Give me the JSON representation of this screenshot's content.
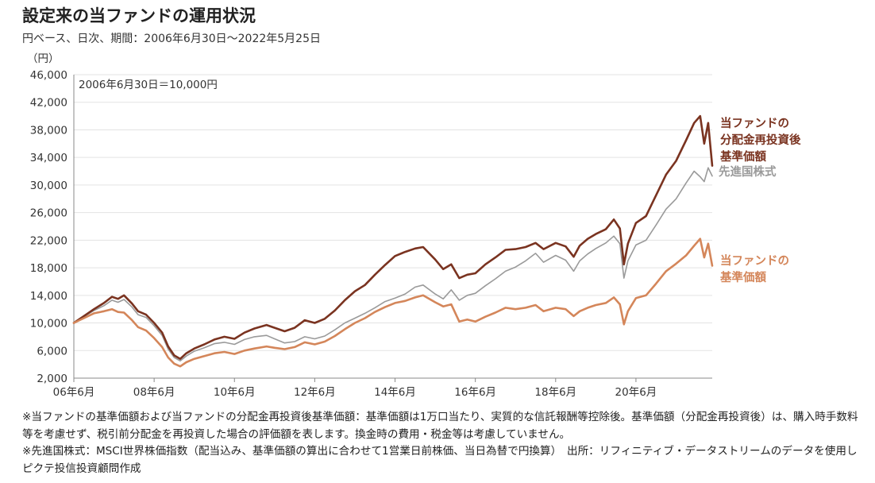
{
  "header": {
    "title": "設定来の当ファンドの運用状況",
    "subtitle": "円ベース、日次、期間：2006年6月30日～2022年5月25日"
  },
  "chart_data": {
    "type": "line",
    "y_unit_label": "（円）",
    "annotation": "2006年6月30日＝10,000円",
    "ylim": [
      2000,
      46000
    ],
    "y_ticks": [
      "2,000",
      "6,000",
      "10,000",
      "14,000",
      "18,000",
      "22,000",
      "26,000",
      "30,000",
      "34,000",
      "38,000",
      "42,000",
      "46,000"
    ],
    "y_tick_values": [
      2000,
      6000,
      10000,
      14000,
      18000,
      22000,
      26000,
      30000,
      34000,
      38000,
      42000,
      46000
    ],
    "x_ticks": [
      "06年6月",
      "08年6月",
      "10年6月",
      "12年6月",
      "14年6月",
      "16年6月",
      "18年6月",
      "20年6月"
    ],
    "x_tick_values": [
      2006.5,
      2008.5,
      2010.5,
      2012.5,
      2014.5,
      2016.5,
      2018.5,
      2020.5
    ],
    "xlim": [
      2006.5,
      2022.4
    ],
    "grid": true,
    "legend": "direct labels at right",
    "series": [
      {
        "name": "先進国株式",
        "label_lines": [
          "先進国株式"
        ],
        "color": "#9a9a9a",
        "x": [
          2006.5,
          2006.75,
          2007.0,
          2007.25,
          2007.45,
          2007.6,
          2007.75,
          2007.95,
          2008.1,
          2008.3,
          2008.5,
          2008.7,
          2008.85,
          2009.0,
          2009.15,
          2009.3,
          2009.5,
          2009.75,
          2010.0,
          2010.25,
          2010.5,
          2010.75,
          2011.0,
          2011.3,
          2011.5,
          2011.75,
          2012.0,
          2012.25,
          2012.5,
          2012.75,
          2013.0,
          2013.25,
          2013.5,
          2013.75,
          2014.0,
          2014.25,
          2014.5,
          2014.75,
          2015.0,
          2015.2,
          2015.5,
          2015.7,
          2015.9,
          2016.1,
          2016.3,
          2016.5,
          2016.75,
          2017.0,
          2017.25,
          2017.5,
          2017.75,
          2018.0,
          2018.2,
          2018.5,
          2018.75,
          2018.95,
          2019.1,
          2019.3,
          2019.5,
          2019.75,
          2019.95,
          2020.1,
          2020.2,
          2020.3,
          2020.5,
          2020.75,
          2021.0,
          2021.25,
          2021.5,
          2021.75,
          2021.95,
          2022.1,
          2022.2,
          2022.3,
          2022.4
        ],
        "values": [
          10000,
          10900,
          11800,
          12500,
          13300,
          13000,
          13400,
          12300,
          11200,
          10800,
          9600,
          8200,
          6200,
          5000,
          4500,
          5200,
          5900,
          6400,
          7000,
          7200,
          6900,
          7600,
          8000,
          8200,
          7700,
          7100,
          7300,
          8000,
          7700,
          8100,
          9000,
          10000,
          10700,
          11400,
          12200,
          13100,
          13600,
          14200,
          15200,
          15500,
          14200,
          13500,
          14800,
          13300,
          14000,
          14300,
          15400,
          16400,
          17500,
          18100,
          19000,
          20100,
          18800,
          19800,
          19100,
          17500,
          19000,
          20000,
          20800,
          21600,
          22600,
          21500,
          16500,
          19000,
          21300,
          22000,
          24200,
          26500,
          28000,
          30300,
          32000,
          31200,
          30500,
          32500,
          31300
        ]
      },
      {
        "name": "当ファンドの分配金再投資後基準価額",
        "label_lines": [
          "当ファンドの",
          "分配金再投資後",
          "基準価額"
        ],
        "color": "#7a3320",
        "x": [
          2006.5,
          2006.75,
          2007.0,
          2007.25,
          2007.45,
          2007.6,
          2007.75,
          2007.95,
          2008.1,
          2008.3,
          2008.5,
          2008.7,
          2008.85,
          2009.0,
          2009.15,
          2009.3,
          2009.5,
          2009.75,
          2010.0,
          2010.25,
          2010.5,
          2010.75,
          2011.0,
          2011.3,
          2011.5,
          2011.75,
          2012.0,
          2012.25,
          2012.5,
          2012.75,
          2013.0,
          2013.25,
          2013.5,
          2013.75,
          2014.0,
          2014.25,
          2014.5,
          2014.75,
          2015.0,
          2015.2,
          2015.5,
          2015.7,
          2015.9,
          2016.1,
          2016.3,
          2016.5,
          2016.75,
          2017.0,
          2017.25,
          2017.5,
          2017.75,
          2018.0,
          2018.2,
          2018.5,
          2018.75,
          2018.95,
          2019.1,
          2019.3,
          2019.5,
          2019.75,
          2019.95,
          2020.1,
          2020.2,
          2020.3,
          2020.5,
          2020.75,
          2021.0,
          2021.25,
          2021.5,
          2021.75,
          2021.95,
          2022.1,
          2022.2,
          2022.3,
          2022.4
        ],
        "values": [
          10000,
          11000,
          12000,
          12900,
          13800,
          13500,
          14000,
          12800,
          11700,
          11200,
          10000,
          8600,
          6600,
          5300,
          4800,
          5600,
          6300,
          6900,
          7600,
          8000,
          7700,
          8600,
          9200,
          9700,
          9300,
          8800,
          9300,
          10400,
          10000,
          10600,
          11800,
          13300,
          14600,
          15500,
          17000,
          18400,
          19700,
          20300,
          20800,
          21000,
          19200,
          17800,
          18500,
          16500,
          17000,
          17200,
          18500,
          19500,
          20600,
          20700,
          21000,
          21600,
          20700,
          21600,
          21100,
          19600,
          21200,
          22200,
          22900,
          23600,
          25000,
          23700,
          18500,
          21500,
          24500,
          25500,
          28500,
          31500,
          33500,
          36500,
          39000,
          40000,
          36000,
          39000,
          32800
        ]
      },
      {
        "name": "当ファンドの基準価額",
        "label_lines": [
          "当ファンドの",
          "基準価額"
        ],
        "color": "#d4865a",
        "x": [
          2006.5,
          2006.75,
          2007.0,
          2007.25,
          2007.45,
          2007.6,
          2007.75,
          2007.95,
          2008.1,
          2008.3,
          2008.5,
          2008.7,
          2008.85,
          2009.0,
          2009.15,
          2009.3,
          2009.5,
          2009.75,
          2010.0,
          2010.25,
          2010.5,
          2010.75,
          2011.0,
          2011.3,
          2011.5,
          2011.75,
          2012.0,
          2012.25,
          2012.5,
          2012.75,
          2013.0,
          2013.25,
          2013.5,
          2013.75,
          2014.0,
          2014.25,
          2014.5,
          2014.75,
          2015.0,
          2015.2,
          2015.5,
          2015.7,
          2015.9,
          2016.1,
          2016.3,
          2016.5,
          2016.75,
          2017.0,
          2017.25,
          2017.5,
          2017.75,
          2018.0,
          2018.2,
          2018.5,
          2018.75,
          2018.95,
          2019.1,
          2019.3,
          2019.5,
          2019.75,
          2019.95,
          2020.1,
          2020.2,
          2020.3,
          2020.5,
          2020.75,
          2021.0,
          2021.25,
          2021.5,
          2021.75,
          2021.95,
          2022.1,
          2022.2,
          2022.3,
          2022.4
        ],
        "values": [
          10000,
          10700,
          11400,
          11700,
          12000,
          11600,
          11500,
          10400,
          9400,
          8900,
          7800,
          6500,
          5000,
          4100,
          3700,
          4300,
          4800,
          5200,
          5600,
          5800,
          5500,
          6000,
          6300,
          6600,
          6400,
          6200,
          6500,
          7200,
          6900,
          7300,
          8100,
          9100,
          10000,
          10700,
          11600,
          12300,
          12900,
          13200,
          13700,
          14000,
          13000,
          12400,
          12700,
          10200,
          10500,
          10200,
          10900,
          11500,
          12200,
          12000,
          12200,
          12600,
          11700,
          12200,
          12000,
          11000,
          11700,
          12200,
          12600,
          12900,
          13700,
          12700,
          9800,
          11700,
          13600,
          14000,
          15700,
          17500,
          18600,
          19800,
          21200,
          22200,
          19500,
          21500,
          18300
        ]
      }
    ]
  },
  "notes": [
    "※当ファンドの基準価額および当ファンドの分配金再投資後基準価額：基準価額は1万口当たり、実質的な信託報酬等控除後。基準価額（分配金再投資後）は、購入時手数料等を考慮せず、税引前分配金を再投資した場合の評価額を表します。換金時の費用・税金等は考慮していません。",
    "※先進国株式：MSCI世界株価指数（配当込み、基準価額の算出に合わせて1営業日前株価、当日為替で円換算）　出所：リフィニティブ・データストリームのデータを使用しピクテ投信投資顧問作成"
  ]
}
